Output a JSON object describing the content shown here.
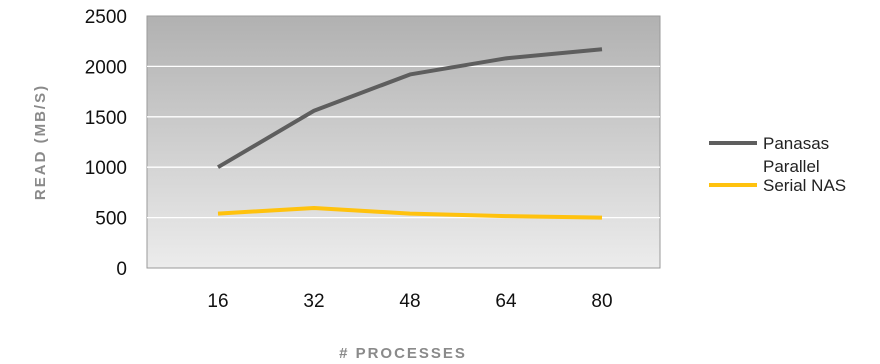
{
  "chart_data": {
    "type": "line",
    "title": "",
    "xlabel": "# PROCESSES",
    "ylabel": "READ (MB/S)",
    "categories": [
      "16",
      "32",
      "48",
      "64",
      "80"
    ],
    "ylim": [
      0,
      2500
    ],
    "yticks": [
      "0",
      "500",
      "1000",
      "1500",
      "2000",
      "2500"
    ],
    "grid": true,
    "legend_position": "right",
    "series": [
      {
        "name_lines": [
          "Panasas",
          "Parallel"
        ],
        "values": [
          1000,
          1560,
          1920,
          2080,
          2170
        ],
        "color": "#5e5e5e"
      },
      {
        "name_lines": [
          "Serial NAS"
        ],
        "values": [
          540,
          595,
          540,
          515,
          500
        ],
        "color": "#ffc20e"
      }
    ],
    "background_gradient": [
      "#b1b1b1",
      "#ececec"
    ]
  }
}
